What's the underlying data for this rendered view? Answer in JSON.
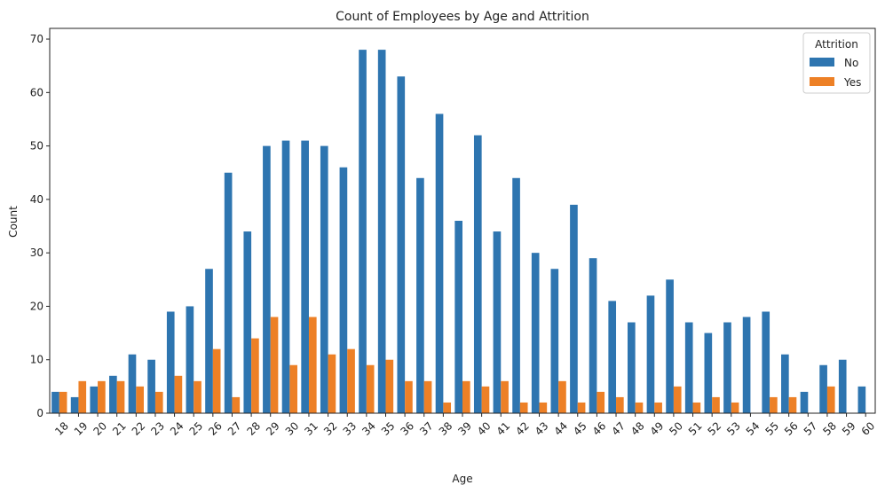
{
  "chart_data": {
    "type": "bar",
    "title": "Count of Employees by Age and Attrition",
    "xlabel": "Age",
    "ylabel": "Count",
    "ylim": [
      0,
      72
    ],
    "yticks": [
      0,
      10,
      20,
      30,
      40,
      50,
      60,
      70
    ],
    "categories": [
      "18",
      "19",
      "20",
      "21",
      "22",
      "23",
      "24",
      "25",
      "26",
      "27",
      "28",
      "29",
      "30",
      "31",
      "32",
      "33",
      "34",
      "35",
      "36",
      "37",
      "38",
      "39",
      "40",
      "41",
      "42",
      "43",
      "44",
      "45",
      "46",
      "47",
      "48",
      "49",
      "50",
      "51",
      "52",
      "53",
      "54",
      "55",
      "56",
      "57",
      "58",
      "59",
      "60"
    ],
    "series": [
      {
        "name": "No",
        "color": "#2e75b0",
        "values": [
          4,
          3,
          5,
          7,
          11,
          10,
          19,
          20,
          27,
          45,
          34,
          50,
          51,
          51,
          50,
          46,
          68,
          68,
          63,
          44,
          56,
          36,
          52,
          34,
          44,
          30,
          27,
          39,
          29,
          21,
          17,
          22,
          25,
          17,
          15,
          17,
          18,
          19,
          11,
          4,
          9,
          10,
          5
        ]
      },
      {
        "name": "Yes",
        "color": "#ed8026",
        "values": [
          4,
          6,
          6,
          6,
          5,
          4,
          7,
          6,
          12,
          3,
          14,
          18,
          9,
          18,
          11,
          12,
          9,
          10,
          6,
          6,
          2,
          6,
          5,
          6,
          2,
          2,
          6,
          2,
          4,
          3,
          2,
          2,
          5,
          2,
          3,
          2,
          0,
          3,
          3,
          0,
          5,
          0,
          0
        ]
      }
    ],
    "legend": {
      "title": "Attrition",
      "position": "top-right"
    }
  }
}
